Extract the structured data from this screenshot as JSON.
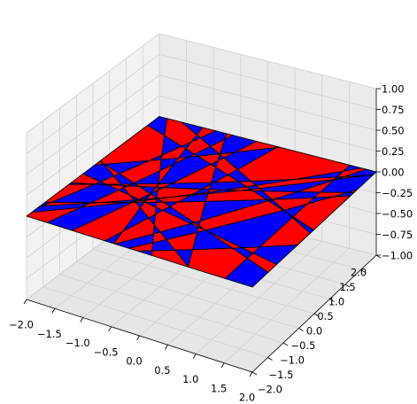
{
  "chart_data": {
    "type": "surface3d",
    "xlim": [
      -2,
      2
    ],
    "ylim": [
      -2,
      2
    ],
    "zlim": [
      -1,
      1
    ],
    "xticks": [
      {
        "value": -2,
        "label": "−2.0"
      },
      {
        "value": -1.5,
        "label": "−1.5"
      },
      {
        "value": -1,
        "label": "−1.0"
      },
      {
        "value": -0.5,
        "label": "−0.5"
      },
      {
        "value": 0,
        "label": "0.0"
      },
      0.5,
      {
        "value": 1,
        "label": "1.0"
      },
      1.5,
      {
        "value": 2,
        "label": "2.0"
      }
    ],
    "yticks": [
      {
        "value": -2,
        "label": "−2.0"
      },
      {
        "value": -1.5,
        "label": "−1.5"
      },
      {
        "value": -1,
        "label": "−1.0"
      },
      {
        "value": -0.5,
        "label": "−0.5"
      },
      {
        "value": 0,
        "label": "0.0"
      },
      0.5,
      {
        "value": 1,
        "label": "1.0"
      },
      1.5,
      {
        "value": 2,
        "label": "2.0"
      }
    ],
    "zticks": [
      {
        "value": -1,
        "label": "−1.00"
      },
      {
        "value": -0.75,
        "label": "−0.75"
      },
      {
        "value": -0.5,
        "label": "−0.50"
      },
      {
        "value": -0.25,
        "label": "−0.25"
      },
      {
        "value": 0,
        "label": "0.00"
      },
      0.25,
      {
        "value": 0.5,
        "label": "0.50"
      },
      0.75,
      {
        "value": 1,
        "label": "1.00"
      }
    ],
    "z": 0,
    "colors": [
      "#ff0000",
      "#0000ff"
    ],
    "grid": true
  }
}
